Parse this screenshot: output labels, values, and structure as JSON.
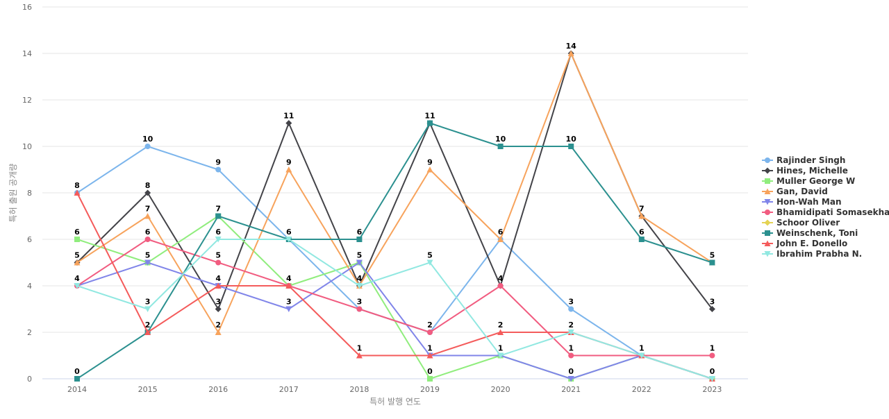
{
  "chart_data": {
    "type": "line",
    "title": "",
    "xlabel": "특허 발행 연도",
    "ylabel": "특허 출원 공개량",
    "x": [
      "2014",
      "2015",
      "2016",
      "2017",
      "2018",
      "2019",
      "2020",
      "2021",
      "2022",
      "2023"
    ],
    "ylim": [
      0,
      16
    ],
    "yticks": [
      0,
      2,
      4,
      6,
      8,
      10,
      12,
      14,
      16
    ],
    "grid": true,
    "legend_position": "right",
    "series": [
      {
        "name": "Rajinder Singh",
        "color": "#7cb5ec",
        "marker": "circle",
        "values": [
          8,
          10,
          9,
          6,
          3,
          2,
          6,
          3,
          1,
          0
        ]
      },
      {
        "name": "Hines, Michelle",
        "color": "#434348",
        "marker": "diamond",
        "values": [
          5,
          8,
          3,
          11,
          4,
          11,
          4,
          14,
          7,
          3
        ]
      },
      {
        "name": "Muller George W",
        "color": "#90ed7d",
        "marker": "square",
        "values": [
          6,
          5,
          7,
          4,
          5,
          0,
          1,
          0,
          1,
          0
        ]
      },
      {
        "name": "Gan, David",
        "color": "#f7a35c",
        "marker": "triangle",
        "values": [
          5,
          7,
          2,
          9,
          4,
          9,
          6,
          14,
          7,
          5
        ]
      },
      {
        "name": "Hon-Wah Man",
        "color": "#8085e9",
        "marker": "triangle-down",
        "values": [
          4,
          5,
          4,
          3,
          5,
          1,
          1,
          0,
          1,
          0
        ]
      },
      {
        "name": "Bhamidipati Somasekhar",
        "color": "#f15c80",
        "marker": "circle",
        "values": [
          4,
          6,
          5,
          4,
          3,
          2,
          4,
          1,
          1,
          1
        ]
      },
      {
        "name": "Schoor Oliver",
        "color": "#e4d354",
        "marker": "diamond",
        "values": [
          null,
          null,
          null,
          null,
          null,
          null,
          null,
          null,
          null,
          null
        ]
      },
      {
        "name": "Weinschenk, Toni",
        "color": "#2b908f",
        "marker": "square",
        "values": [
          0,
          2,
          7,
          6,
          6,
          11,
          10,
          10,
          6,
          5
        ]
      },
      {
        "name": "John E. Donello",
        "color": "#f45b5b",
        "marker": "triangle",
        "values": [
          8,
          2,
          4,
          4,
          1,
          1,
          2,
          2,
          1,
          0
        ]
      },
      {
        "name": "Ibrahim Prabha N.",
        "color": "#91e8e1",
        "marker": "triangle-down",
        "values": [
          4,
          3,
          6,
          6,
          4,
          5,
          1,
          2,
          1,
          0
        ]
      }
    ],
    "data_labels": [
      {
        "x": "2014",
        "value": 8
      },
      {
        "x": "2014",
        "value": 6
      },
      {
        "x": "2014",
        "value": 5
      },
      {
        "x": "2014",
        "value": 4
      },
      {
        "x": "2014",
        "value": 0
      },
      {
        "x": "2015",
        "value": 10
      },
      {
        "x": "2015",
        "value": 8
      },
      {
        "x": "2015",
        "value": 7
      },
      {
        "x": "2015",
        "value": 6
      },
      {
        "x": "2015",
        "value": 5
      },
      {
        "x": "2015",
        "value": 3
      },
      {
        "x": "2015",
        "value": 2
      },
      {
        "x": "2016",
        "value": 9
      },
      {
        "x": "2016",
        "value": 7
      },
      {
        "x": "2016",
        "value": 6
      },
      {
        "x": "2016",
        "value": 5
      },
      {
        "x": "2016",
        "value": 4
      },
      {
        "x": "2016",
        "value": 3
      },
      {
        "x": "2016",
        "value": 2
      },
      {
        "x": "2017",
        "value": 11
      },
      {
        "x": "2017",
        "value": 9
      },
      {
        "x": "2017",
        "value": 6
      },
      {
        "x": "2017",
        "value": 4
      },
      {
        "x": "2017",
        "value": 3
      },
      {
        "x": "2018",
        "value": 6
      },
      {
        "x": "2018",
        "value": 5
      },
      {
        "x": "2018",
        "value": 4
      },
      {
        "x": "2018",
        "value": 3
      },
      {
        "x": "2018",
        "value": 1
      },
      {
        "x": "2019",
        "value": 11
      },
      {
        "x": "2019",
        "value": 9
      },
      {
        "x": "2019",
        "value": 5
      },
      {
        "x": "2019",
        "value": 2
      },
      {
        "x": "2019",
        "value": 1
      },
      {
        "x": "2019",
        "value": 0
      },
      {
        "x": "2020",
        "value": 10
      },
      {
        "x": "2020",
        "value": 6
      },
      {
        "x": "2020",
        "value": 4
      },
      {
        "x": "2020",
        "value": 2
      },
      {
        "x": "2020",
        "value": 1
      },
      {
        "x": "2021",
        "value": 14
      },
      {
        "x": "2021",
        "value": 10
      },
      {
        "x": "2021",
        "value": 3
      },
      {
        "x": "2021",
        "value": 2
      },
      {
        "x": "2021",
        "value": 1
      },
      {
        "x": "2021",
        "value": 0
      },
      {
        "x": "2022",
        "value": 7
      },
      {
        "x": "2022",
        "value": 6
      },
      {
        "x": "2022",
        "value": 1
      },
      {
        "x": "2023",
        "value": 5
      },
      {
        "x": "2023",
        "value": 3
      },
      {
        "x": "2023",
        "value": 1
      },
      {
        "x": "2023",
        "value": 0
      }
    ]
  }
}
